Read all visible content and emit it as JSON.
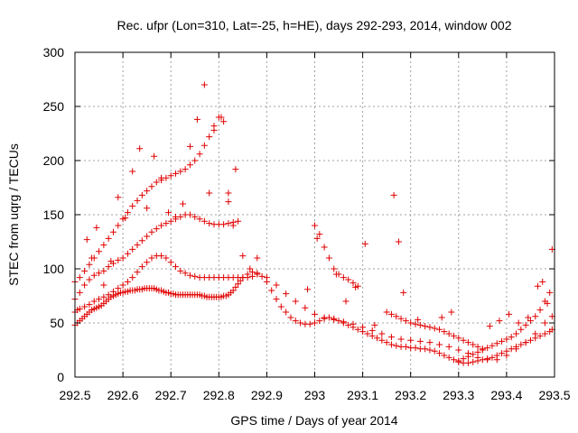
{
  "chart_data": {
    "type": "scatter",
    "title": "Rec. ufpr (Lon=310, Lat=-25, h=HE), days 292-293, 2014, window 002",
    "xlabel": "GPS time / Days of year 2014",
    "ylabel": "STEC from uqrg / TECUs",
    "xlim": [
      292.5,
      293.5
    ],
    "ylim": [
      0,
      300
    ],
    "xticks": [
      292.5,
      292.6,
      292.7,
      292.8,
      292.9,
      293.0,
      293.1,
      293.2,
      293.3,
      293.4,
      293.5
    ],
    "xtick_labels": [
      "292.5",
      "292.6",
      "292.7",
      "292.8",
      "292.9",
      "293",
      "293.1",
      "293.2",
      "293.3",
      "293.4",
      "293.5"
    ],
    "yticks": [
      0,
      50,
      100,
      150,
      200,
      250,
      300
    ],
    "ytick_labels": [
      "0",
      "50",
      "100",
      "150",
      "200",
      "250",
      "300"
    ],
    "grid": true,
    "marker": "+",
    "marker_color": "#e00000",
    "series": [
      {
        "x": [
          292.5,
          292.505,
          292.51,
          292.515,
          292.52,
          292.525,
          292.53,
          292.535,
          292.54,
          292.545,
          292.55,
          292.555,
          292.56,
          292.565,
          292.57,
          292.575,
          292.58,
          292.585,
          292.59,
          292.595,
          292.6,
          292.605,
          292.61,
          292.615,
          292.62,
          292.625,
          292.63,
          292.635,
          292.64,
          292.645,
          292.65,
          292.655,
          292.66,
          292.665,
          292.67,
          292.675,
          292.68,
          292.685,
          292.69,
          292.695,
          292.7,
          292.705,
          292.71,
          292.715,
          292.72,
          292.725,
          292.73,
          292.735,
          292.74,
          292.745,
          292.75,
          292.755,
          292.76,
          292.765,
          292.77,
          292.775,
          292.78,
          292.785,
          292.79,
          292.795,
          292.8,
          292.805,
          292.81,
          292.815,
          292.82,
          292.825,
          292.83,
          292.835,
          292.84,
          292.845,
          292.85,
          292.86,
          292.87,
          292.88,
          292.89,
          292.9,
          292.91,
          292.92,
          292.93,
          292.94,
          292.95,
          292.96,
          292.97,
          292.98,
          292.99,
          293.0,
          293.01,
          293.02,
          293.03,
          293.04,
          293.05,
          293.06,
          293.07,
          293.08,
          293.09,
          293.1,
          293.11,
          293.12,
          293.13,
          293.14,
          293.15,
          293.16,
          293.17,
          293.18,
          293.19,
          293.2,
          293.21,
          293.22,
          293.23,
          293.24,
          293.25,
          293.26,
          293.27,
          293.28,
          293.29,
          293.3,
          293.31,
          293.32,
          293.33,
          293.34,
          293.35,
          293.36,
          293.37,
          293.38,
          293.39,
          293.4,
          293.41,
          293.42,
          293.43,
          293.44,
          293.45,
          293.46,
          293.47,
          293.48,
          293.49,
          293.495
        ],
        "y": [
          48,
          50,
          52,
          54,
          56,
          58,
          60,
          62,
          63,
          64,
          65,
          66,
          68,
          70,
          72,
          74,
          75,
          76,
          77,
          78,
          78,
          79,
          79,
          80,
          80,
          80,
          81,
          81,
          81,
          82,
          82,
          82,
          82,
          82,
          81,
          80,
          80,
          79,
          78,
          78,
          77,
          77,
          76,
          76,
          76,
          76,
          76,
          76,
          76,
          76,
          76,
          76,
          76,
          75,
          75,
          74,
          74,
          74,
          74,
          74,
          74,
          74,
          75,
          75,
          76,
          78,
          80,
          83,
          86,
          89,
          92,
          95,
          97,
          96,
          93,
          88,
          80,
          72,
          65,
          60,
          55,
          52,
          50,
          49,
          49,
          50,
          52,
          54,
          55,
          54,
          52,
          50,
          48,
          46,
          44,
          42,
          40,
          38,
          36,
          34,
          32,
          30,
          29,
          28,
          28,
          27,
          27,
          26,
          26,
          25,
          24,
          22,
          20,
          18,
          16,
          14,
          13,
          13,
          14,
          15,
          16,
          17,
          18,
          20,
          22,
          24,
          26,
          28,
          30,
          32,
          34,
          36,
          38,
          40,
          42,
          44
        ]
      },
      {
        "x": [
          292.5,
          292.505,
          292.51,
          292.52,
          292.53,
          292.54,
          292.55,
          292.56,
          292.57,
          292.58,
          292.59,
          292.6,
          292.61,
          292.62,
          292.63,
          292.64,
          292.65,
          292.66,
          292.67,
          292.68,
          292.69,
          292.7,
          292.71,
          292.72,
          292.73,
          292.74,
          292.75,
          292.76,
          292.77,
          292.78,
          292.79,
          292.8,
          292.81,
          292.82,
          292.83,
          292.84,
          292.85,
          292.86,
          292.87,
          292.88,
          292.9,
          292.92,
          292.94,
          292.96,
          292.98,
          293.0,
          293.02,
          293.04,
          293.06,
          293.08,
          293.1,
          293.12,
          293.14,
          293.16,
          293.18,
          293.2,
          293.22,
          293.24,
          293.26,
          293.28,
          293.3,
          293.32,
          293.34,
          293.36,
          293.38,
          293.4,
          293.42,
          293.44,
          293.46,
          293.48,
          293.495
        ],
        "y": [
          60,
          62,
          63,
          65,
          67,
          70,
          72,
          74,
          76,
          79,
          82,
          85,
          88,
          92,
          97,
          102,
          106,
          110,
          112,
          112,
          110,
          106,
          102,
          98,
          96,
          94,
          93,
          92,
          92,
          92,
          92,
          92,
          92,
          92,
          92,
          92,
          92,
          92,
          93,
          95,
          92,
          85,
          77,
          70,
          64,
          58,
          55,
          53,
          51,
          49,
          46,
          43,
          40,
          37,
          35,
          34,
          33,
          32,
          30,
          28,
          25,
          22,
          18,
          16,
          16,
          20,
          26,
          32,
          40,
          50,
          56
        ]
      },
      {
        "x": [
          292.5,
          292.51,
          292.52,
          292.53,
          292.54,
          292.55,
          292.56,
          292.57,
          292.58,
          292.59,
          292.6,
          292.61,
          292.62,
          292.63,
          292.64,
          292.65,
          292.66,
          292.67,
          292.68,
          292.69,
          292.7,
          292.71,
          292.72,
          292.73,
          292.74,
          292.75,
          292.76,
          292.77,
          292.78,
          292.79,
          292.8,
          292.81,
          292.82,
          292.83,
          292.84,
          293.0,
          293.01,
          293.02,
          293.03,
          293.04,
          293.05,
          293.06,
          293.07,
          293.08,
          293.09,
          293.3,
          293.31,
          293.32,
          293.33,
          293.34,
          293.35,
          293.36,
          293.37,
          293.38,
          293.39,
          293.4,
          293.41,
          293.42,
          293.43,
          293.44,
          293.45,
          293.46,
          293.47,
          293.48,
          293.49
        ],
        "y": [
          72,
          78,
          85,
          90,
          94,
          96,
          98,
          102,
          105,
          108,
          110,
          114,
          118,
          122,
          126,
          130,
          134,
          137,
          140,
          142,
          144,
          146,
          148,
          150,
          150,
          148,
          146,
          144,
          142,
          141,
          141,
          141,
          142,
          143,
          144,
          140,
          132,
          120,
          110,
          100,
          95,
          92,
          90,
          87,
          84,
          15,
          17,
          19,
          21,
          23,
          25,
          27,
          29,
          31,
          33,
          35,
          37,
          40,
          44,
          48,
          52,
          56,
          62,
          70,
          78
        ]
      },
      {
        "x": [
          292.5,
          292.51,
          292.52,
          292.53,
          292.54,
          292.55,
          292.56,
          292.57,
          292.58,
          292.59,
          292.6,
          292.61,
          292.62,
          292.63,
          292.64,
          292.65,
          292.66,
          292.67,
          292.68,
          292.69,
          292.7,
          292.71,
          292.72,
          292.73,
          292.74,
          292.75,
          292.76,
          292.77,
          292.78,
          292.79,
          292.8,
          292.81,
          292.82,
          292.83,
          293.15,
          293.16,
          293.17,
          293.18,
          293.19,
          293.2,
          293.21,
          293.22,
          293.23,
          293.24,
          293.25,
          293.26,
          293.27,
          293.28,
          293.29,
          293.3,
          293.31,
          293.32,
          293.33,
          293.34,
          293.35
        ],
        "y": [
          88,
          92,
          98,
          104,
          110,
          116,
          122,
          128,
          134,
          140,
          146,
          152,
          158,
          163,
          168,
          172,
          176,
          180,
          182,
          184,
          186,
          188,
          190,
          192,
          196,
          200,
          206,
          214,
          222,
          232,
          240,
          236,
          170,
          140,
          60,
          58,
          56,
          54,
          52,
          50,
          49,
          48,
          47,
          46,
          45,
          44,
          42,
          40,
          38,
          36,
          34,
          32,
          30,
          28,
          26
        ]
      },
      {
        "x": [
          292.525,
          292.535,
          292.545,
          292.56,
          292.575,
          292.59,
          292.605,
          292.62,
          292.635,
          292.65,
          292.665,
          292.68,
          292.695,
          292.71,
          292.725,
          292.74,
          292.755,
          292.77,
          292.78,
          292.79,
          292.805,
          292.82,
          292.835,
          292.85,
          292.865,
          292.88,
          292.985,
          293.005,
          293.045,
          293.065,
          293.085,
          293.105,
          293.125,
          293.165,
          293.175,
          293.185,
          293.215,
          293.265,
          293.285,
          293.365,
          293.385,
          293.405,
          293.425,
          293.445,
          293.465,
          293.475,
          293.485,
          293.495
        ],
        "y": [
          127,
          110,
          138,
          85,
          107,
          166,
          147,
          190,
          211,
          156,
          204,
          184,
          152,
          148,
          160,
          213,
          238,
          270,
          170,
          228,
          240,
          162,
          192,
          112,
          100,
          110,
          81,
          128,
          95,
          70,
          83,
          123,
          48,
          168,
          125,
          78,
          53,
          55,
          60,
          47,
          52,
          58,
          50,
          55,
          84,
          88,
          68,
          118
        ]
      }
    ]
  }
}
